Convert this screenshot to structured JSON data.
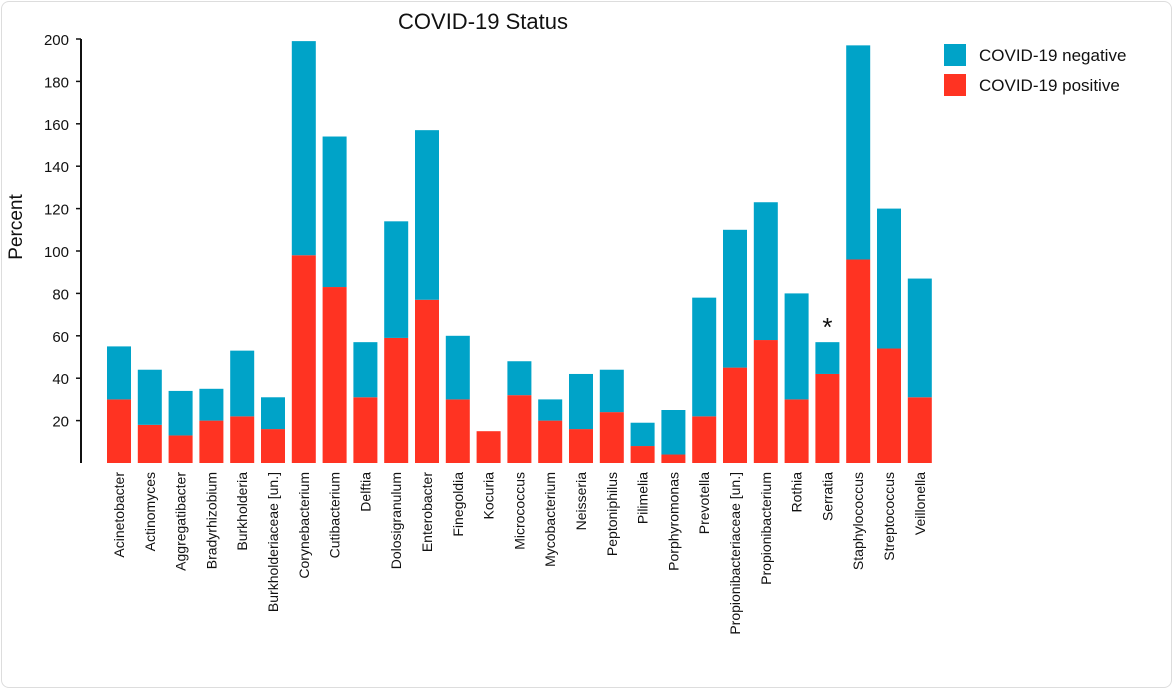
{
  "chart_data": {
    "type": "bar",
    "stacked": true,
    "title": "COVID-19 Status",
    "ylabel": "Percent",
    "xlabel": "",
    "ylim": [
      0,
      200
    ],
    "yticks": [
      20,
      40,
      60,
      80,
      100,
      120,
      140,
      160,
      180,
      200
    ],
    "grid": false,
    "legend_position": "top-right",
    "categories": [
      "Acinetobacter",
      "Actinomyces",
      "Aggregatibacter",
      "Bradyrhizobium",
      "Burkholderia",
      "Burkholderiaceae [un.]",
      "Corynebacterium",
      "Cutibacterium",
      "Delftia",
      "Dolosigranulum",
      "Enterobacter",
      "Finegoldia",
      "Kocuria",
      "Micrococcus",
      "Mycobacterium",
      "Neisseria",
      "Peptoniphilus",
      "Pilimelia",
      "Porphyromonas",
      "Prevotella",
      "Propionibacteriaceae [un.]",
      "Propionibacterium",
      "Rothia",
      "Serratia",
      "Staphylococcus",
      "Streptococcus",
      "Veillonella"
    ],
    "series": [
      {
        "name": "COVID-19 positive",
        "color": "#ff3322",
        "values": [
          30,
          18,
          13,
          20,
          22,
          16,
          98,
          83,
          31,
          59,
          77,
          30,
          15,
          32,
          20,
          16,
          24,
          8,
          4,
          22,
          45,
          58,
          30,
          42,
          96,
          54,
          31
        ]
      },
      {
        "name": "COVID-19 negative",
        "color": "#00a3c8",
        "values": [
          25,
          26,
          21,
          15,
          31,
          15,
          101,
          71,
          26,
          55,
          80,
          30,
          0,
          16,
          10,
          26,
          20,
          11,
          21,
          56,
          65,
          65,
          50,
          15,
          101,
          66,
          56
        ]
      }
    ],
    "annotations": [
      {
        "category": "Serratia",
        "text": "*"
      }
    ]
  }
}
